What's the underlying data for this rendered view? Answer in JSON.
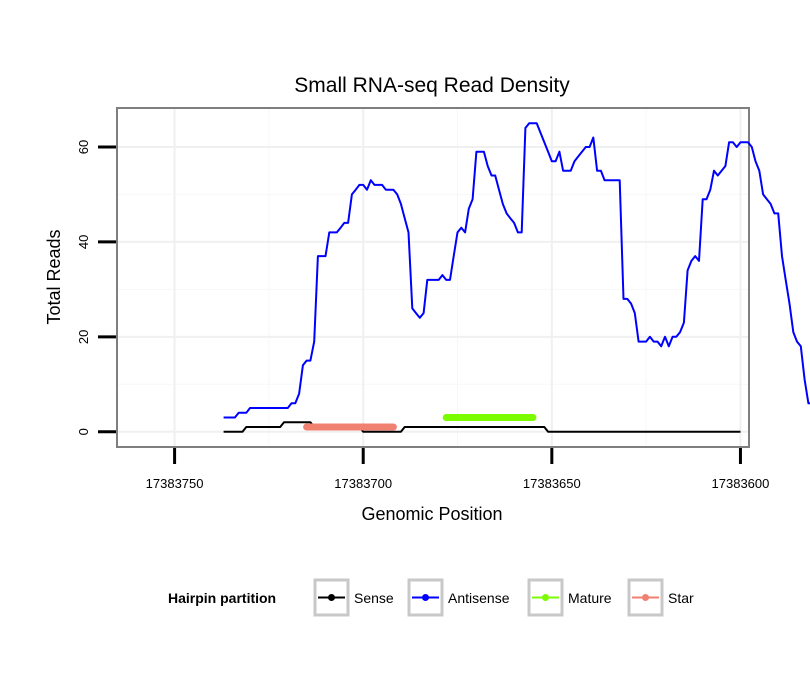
{
  "chart_data": {
    "type": "line",
    "title": "Small RNA-seq Read Density",
    "xlabel": "Genomic Position",
    "ylabel": "Total Reads",
    "x_reversed": true,
    "xlim": [
      17383765,
      17383598
    ],
    "ylim": [
      -3,
      68
    ],
    "x_ticks": [
      17383750,
      17383700,
      17383650,
      17383600
    ],
    "x_tick_labels": [
      "17383750",
      "17383700",
      "17383650",
      "17383600"
    ],
    "y_ticks": [
      0,
      20,
      40,
      60
    ],
    "y_tick_labels": [
      "0",
      "20",
      "40",
      "60"
    ],
    "grid": true,
    "legend": {
      "title": "Hairpin partition",
      "position": "bottom",
      "entries": [
        {
          "label": "Sense",
          "color": "#000000"
        },
        {
          "label": "Antisense",
          "color": "#0000ff"
        },
        {
          "label": "Mature",
          "color": "#7cfc00"
        },
        {
          "label": "Star",
          "color": "#f08070"
        }
      ]
    },
    "series": [
      {
        "name": "Sense",
        "color": "#000000",
        "points": [
          [
            17383737,
            0
          ],
          [
            17383732,
            0
          ],
          [
            17383731,
            1
          ],
          [
            17383722,
            1
          ],
          [
            17383721,
            2
          ],
          [
            17383714,
            2
          ],
          [
            17383713,
            1
          ],
          [
            17383701,
            1
          ],
          [
            17383700,
            0
          ],
          [
            17383690,
            0
          ],
          [
            17383689,
            1
          ],
          [
            17383652,
            1
          ],
          [
            17383651,
            0
          ],
          [
            17383600,
            0
          ]
        ]
      },
      {
        "name": "Antisense",
        "color": "#0000ff",
        "points": [
          [
            17383737,
            3
          ],
          [
            17383734,
            3
          ],
          [
            17383733,
            4
          ],
          [
            17383731,
            4
          ],
          [
            17383730,
            5
          ],
          [
            17383720,
            5
          ],
          [
            17383719,
            6
          ],
          [
            17383718,
            6
          ],
          [
            17383717,
            8
          ],
          [
            17383716,
            14
          ],
          [
            17383715,
            15
          ],
          [
            17383714,
            15
          ],
          [
            17383713,
            19
          ],
          [
            17383712,
            37
          ],
          [
            17383710,
            37
          ],
          [
            17383709,
            42
          ],
          [
            17383707,
            42
          ],
          [
            17383706,
            43
          ],
          [
            17383705,
            44
          ],
          [
            17383704,
            44
          ],
          [
            17383703,
            50
          ],
          [
            17383702,
            51
          ],
          [
            17383701,
            52
          ],
          [
            17383700,
            52
          ],
          [
            17383699,
            51
          ],
          [
            17383698,
            53
          ],
          [
            17383697,
            52
          ],
          [
            17383695,
            52
          ],
          [
            17383694,
            51
          ],
          [
            17383692,
            51
          ],
          [
            17383691,
            50
          ],
          [
            17383690,
            48
          ],
          [
            17383689,
            45
          ],
          [
            17383688,
            42
          ],
          [
            17383687,
            26
          ],
          [
            17383686,
            25
          ],
          [
            17383685,
            24
          ],
          [
            17383684,
            25
          ],
          [
            17383683,
            32
          ],
          [
            17383680,
            32
          ],
          [
            17383679,
            33
          ],
          [
            17383678,
            32
          ],
          [
            17383677,
            32
          ],
          [
            17383676,
            37
          ],
          [
            17383675,
            42
          ],
          [
            17383674,
            43
          ],
          [
            17383673,
            42
          ],
          [
            17383672,
            47
          ],
          [
            17383671,
            49
          ],
          [
            17383670,
            59
          ],
          [
            17383668,
            59
          ],
          [
            17383667,
            56
          ],
          [
            17383666,
            54
          ],
          [
            17383665,
            54
          ],
          [
            17383664,
            51
          ],
          [
            17383663,
            48
          ],
          [
            17383662,
            46
          ],
          [
            17383661,
            45
          ],
          [
            17383660,
            44
          ],
          [
            17383659,
            42
          ],
          [
            17383658,
            42
          ],
          [
            17383657,
            64
          ],
          [
            17383656,
            65
          ],
          [
            17383654,
            65
          ],
          [
            17383653,
            63
          ],
          [
            17383652,
            61
          ],
          [
            17383651,
            59
          ],
          [
            17383650,
            57
          ],
          [
            17383649,
            57
          ],
          [
            17383648,
            59
          ],
          [
            17383647,
            55
          ],
          [
            17383645,
            55
          ],
          [
            17383644,
            57
          ],
          [
            17383643,
            58
          ],
          [
            17383642,
            59
          ],
          [
            17383641,
            60
          ],
          [
            17383640,
            60
          ],
          [
            17383639,
            62
          ],
          [
            17383638,
            55
          ],
          [
            17383637,
            55
          ],
          [
            17383636,
            53
          ],
          [
            17383632,
            53
          ],
          [
            17383631,
            28
          ],
          [
            17383630,
            28
          ],
          [
            17383629,
            27
          ],
          [
            17383628,
            25
          ],
          [
            17383627,
            19
          ],
          [
            17383625,
            19
          ],
          [
            17383624,
            20
          ],
          [
            17383623,
            19
          ],
          [
            17383622,
            19
          ],
          [
            17383621,
            18
          ],
          [
            17383620,
            20
          ],
          [
            17383619,
            18
          ],
          [
            17383618,
            20
          ],
          [
            17383617,
            20
          ],
          [
            17383616,
            21
          ],
          [
            17383615,
            23
          ],
          [
            17383614,
            34
          ],
          [
            17383613,
            36
          ],
          [
            17383612,
            37
          ],
          [
            17383611,
            36
          ],
          [
            17383610,
            49
          ],
          [
            17383609,
            49
          ],
          [
            17383608,
            51
          ],
          [
            17383607,
            55
          ],
          [
            17383606,
            54
          ],
          [
            17383605,
            55
          ],
          [
            17383604,
            56
          ],
          [
            17383603,
            61
          ],
          [
            17383602,
            61
          ],
          [
            17383601,
            60
          ],
          [
            17383600,
            61
          ],
          [
            17383598,
            61
          ],
          [
            17383597,
            60
          ],
          [
            17383596,
            57
          ],
          [
            17383595,
            55
          ],
          [
            17383594,
            50
          ],
          [
            17383593,
            49
          ],
          [
            17383592,
            48
          ],
          [
            17383591,
            46
          ],
          [
            17383590,
            46
          ],
          [
            17383589,
            37
          ],
          [
            17383588,
            32
          ],
          [
            17383587,
            27
          ],
          [
            17383586,
            21
          ],
          [
            17383585,
            19
          ],
          [
            17383584,
            18
          ],
          [
            17383583,
            11
          ],
          [
            17383582,
            6
          ],
          [
            17383580,
            6
          ],
          [
            17383579,
            1
          ]
        ]
      },
      {
        "name": "Mature",
        "color": "#7cfc00",
        "points": [
          [
            17383678,
            3
          ],
          [
            17383672,
            3
          ],
          [
            17383666,
            3
          ],
          [
            17383660,
            3
          ],
          [
            17383655,
            3
          ]
        ]
      },
      {
        "name": "Star",
        "color": "#f08070",
        "points": [
          [
            17383715,
            1
          ],
          [
            17383709,
            1
          ],
          [
            17383703,
            1
          ],
          [
            17383697,
            1
          ],
          [
            17383692,
            1
          ]
        ]
      }
    ]
  }
}
